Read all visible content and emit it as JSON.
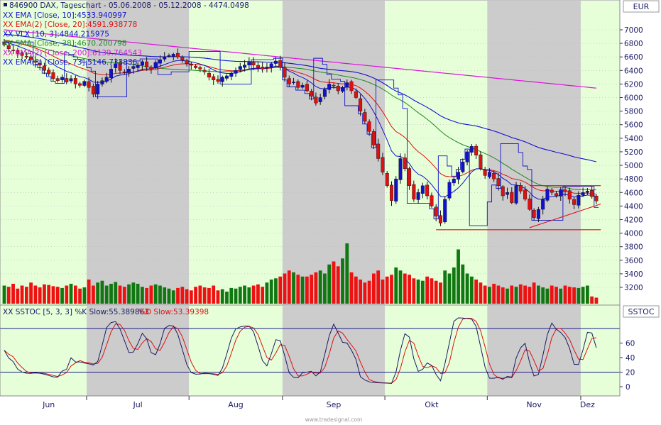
{
  "header": {
    "symbol_line": "846900  DAX, Tageschart - 05.06.2008 - 05.12.2008 - 4474.0498"
  },
  "legend_upper": [
    {
      "text": "XX EMA [Close, 10]:4533.940997",
      "color": "#1111cc"
    },
    {
      "text": "XX EMA(2) [Close, 20]:4591.938778",
      "color": "#dd1111"
    },
    {
      "text": "XX VLX [10, 3]:4844.215975",
      "color": "#1111cc"
    },
    {
      "text": "XX SMA [Close, 38]:4670.200798",
      "color": "#228822"
    },
    {
      "text": "XX SMA(2) [Close, 200]:6139.764543",
      "color": "#dd11dd"
    },
    {
      "text": "XX EMA(3) [Close, 73]:5146.733836",
      "color": "#1111cc"
    }
  ],
  "legend_lower": [
    {
      "text": "XX SSTOC [5, 3, 3] %K Slow:55.389863",
      "color": "#1a1a66"
    },
    {
      "text": "%D Slow:53.39398",
      "color": "#dd1111"
    }
  ],
  "axis_labels": {
    "upper_unit": "EUR",
    "lower_unit": "SSTOC"
  },
  "footer": {
    "watermark": "www.tradesignal.com"
  },
  "colors": {
    "green_band": "#e6ffd8",
    "gray_band": "#cccccc",
    "candle_up": "#1111cc",
    "candle_down": "#dd1111",
    "volume_up": "#117711",
    "volume_down": "#ee1111"
  },
  "chart_data": {
    "type": "candlestick",
    "x_axis": {
      "months": [
        "Jun",
        "Jul",
        "Aug",
        "Sep",
        "Okt",
        "Nov",
        "Dez"
      ],
      "month_start_index": [
        0,
        19,
        42,
        63,
        86,
        109,
        130
      ],
      "month_label_index": [
        10,
        30,
        52,
        74,
        96,
        119,
        131
      ]
    },
    "y_axis_price": {
      "ticks": [
        3200,
        3400,
        3600,
        3800,
        4000,
        4200,
        4400,
        4600,
        4800,
        5000,
        5200,
        5400,
        5600,
        5800,
        6000,
        6200,
        6400,
        6600,
        6800,
        7000
      ],
      "range": [
        3050,
        7200
      ]
    },
    "y_axis_stoch": {
      "ticks": [
        0,
        20,
        40,
        60
      ],
      "range": [
        -5,
        105
      ],
      "bands": [
        20,
        80
      ]
    },
    "close": [
      6780,
      6720,
      6700,
      6650,
      6620,
      6600,
      6560,
      6520,
      6480,
      6400,
      6350,
      6280,
      6250,
      6300,
      6230,
      6280,
      6200,
      6180,
      6240,
      6150,
      6050,
      6200,
      6250,
      6300,
      6420,
      6500,
      6400,
      6380,
      6420,
      6460,
      6480,
      6530,
      6450,
      6420,
      6520,
      6560,
      6600,
      6620,
      6640,
      6600,
      6550,
      6500,
      6480,
      6440,
      6420,
      6380,
      6300,
      6260,
      6240,
      6300,
      6320,
      6360,
      6400,
      6460,
      6480,
      6520,
      6480,
      6440,
      6420,
      6450,
      6500,
      6540,
      6450,
      6300,
      6200,
      6230,
      6150,
      6180,
      6100,
      6020,
      5920,
      6000,
      6120,
      6200,
      6180,
      6100,
      6150,
      6220,
      6100,
      6000,
      5800,
      5650,
      5500,
      5300,
      5100,
      4900,
      4700,
      4480,
      4800,
      5100,
      4950,
      4700,
      4500,
      4600,
      4700,
      4550,
      4400,
      4250,
      4150,
      4500,
      4750,
      4800,
      4900,
      5050,
      5200,
      5280,
      5150,
      4950,
      4850,
      4900,
      4800,
      4700,
      4550,
      4600,
      4450,
      4700,
      4620,
      4500,
      4350,
      4230,
      4350,
      4500,
      4650,
      4600,
      4550,
      4640,
      4620,
      4500,
      4420,
      4560,
      4600,
      4620,
      4540,
      4474
    ],
    "volume_relative": [
      0.3,
      0.28,
      0.33,
      0.25,
      0.3,
      0.28,
      0.35,
      0.3,
      0.27,
      0.32,
      0.31,
      0.29,
      0.28,
      0.26,
      0.3,
      0.33,
      0.3,
      0.25,
      0.27,
      0.4,
      0.3,
      0.35,
      0.38,
      0.3,
      0.33,
      0.36,
      0.3,
      0.28,
      0.32,
      0.35,
      0.33,
      0.28,
      0.26,
      0.3,
      0.32,
      0.3,
      0.27,
      0.25,
      0.22,
      0.26,
      0.28,
      0.24,
      0.22,
      0.28,
      0.3,
      0.27,
      0.26,
      0.3,
      0.22,
      0.24,
      0.2,
      0.26,
      0.25,
      0.28,
      0.3,
      0.27,
      0.3,
      0.32,
      0.28,
      0.35,
      0.4,
      0.42,
      0.45,
      0.5,
      0.55,
      0.52,
      0.48,
      0.45,
      0.45,
      0.48,
      0.52,
      0.55,
      0.5,
      0.65,
      0.7,
      0.62,
      0.75,
      1.0,
      0.52,
      0.45,
      0.4,
      0.35,
      0.38,
      0.5,
      0.55,
      0.4,
      0.45,
      0.48,
      0.6,
      0.55,
      0.5,
      0.48,
      0.42,
      0.4,
      0.38,
      0.45,
      0.42,
      0.38,
      0.35,
      0.55,
      0.5,
      0.6,
      0.9,
      0.65,
      0.5,
      0.45,
      0.4,
      0.35,
      0.3,
      0.28,
      0.33,
      0.3,
      0.27,
      0.25,
      0.3,
      0.28,
      0.32,
      0.3,
      0.28,
      0.35,
      0.3,
      0.27,
      0.25,
      0.3,
      0.28,
      0.25,
      0.3,
      0.28,
      0.27,
      0.26,
      0.28,
      0.3,
      0.12,
      0.1
    ],
    "series": [
      {
        "name": "EMA [Close, 10]",
        "color": "#1111cc",
        "key": "ema10"
      },
      {
        "name": "EMA(2) [Close, 20]",
        "color": "#dd1111",
        "key": "ema20"
      },
      {
        "name": "SMA [Close, 38]",
        "color": "#228822",
        "key": "sma38"
      },
      {
        "name": "SMA(2) [Close, 200]",
        "color": "#dd11dd",
        "key": "sma200",
        "start": 7000,
        "end": 6139.76
      },
      {
        "name": "EMA(3) [Close, 73]",
        "color": "#1111cc",
        "key": "ema73"
      },
      {
        "name": "SSTOC %K Slow",
        "color": "#1a1a66",
        "key": "k"
      },
      {
        "name": "SSTOC %D Slow",
        "color": "#dd1111",
        "key": "d"
      }
    ],
    "annotations": [
      {
        "type": "support",
        "from_index": 97,
        "to_index": 134,
        "value": 4050,
        "color": "#dd1111"
      },
      {
        "type": "resistance",
        "from_index": 118,
        "to_index": 134,
        "value": 4700,
        "color": "#dd1111"
      },
      {
        "type": "trendline",
        "from_index": 118,
        "from_value": 4080,
        "to_index": 134,
        "to_value": 4430,
        "color": "#dd1111"
      }
    ]
  }
}
